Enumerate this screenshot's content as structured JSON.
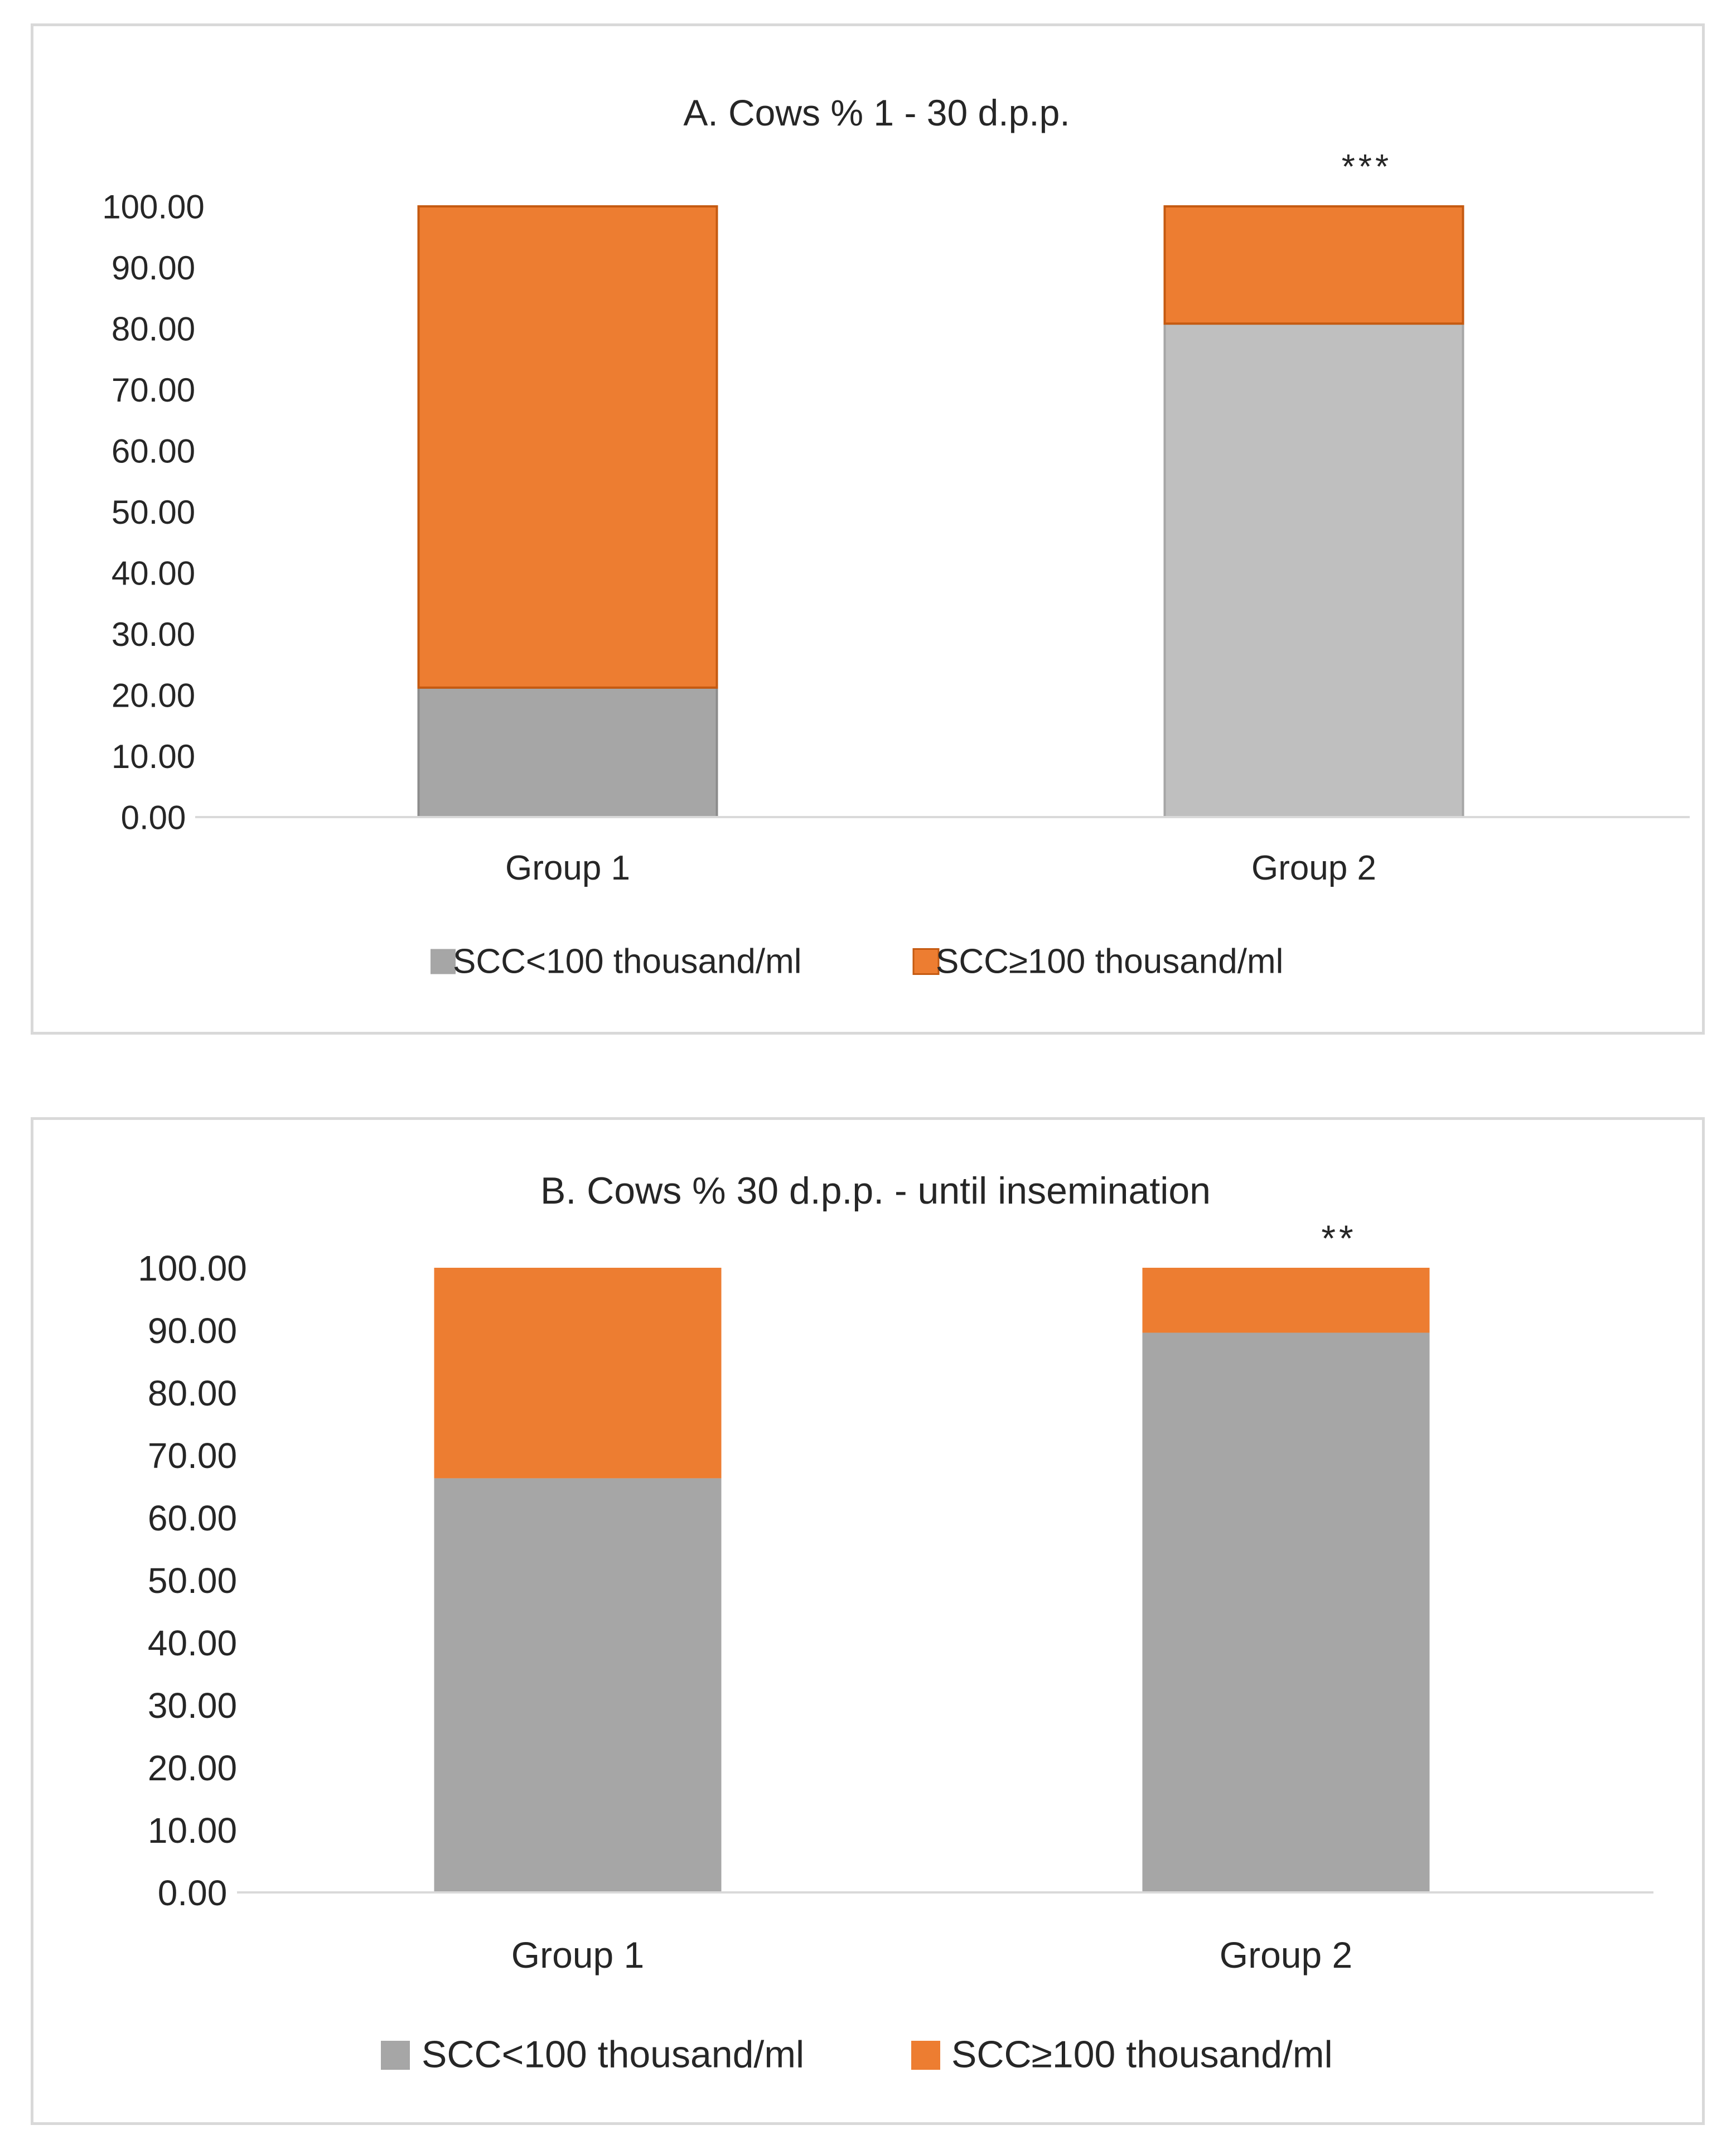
{
  "chart_data": [
    {
      "type": "stacked_bar",
      "title": "A. Cows %  1 - 30 d.p.p.",
      "categories": [
        "Group 1",
        "Group 2"
      ],
      "series": [
        {
          "name": "SCC<100 thousand/ml",
          "values": [
            21.2,
            80.8
          ],
          "color": "#a6a6a6"
        },
        {
          "name": "SCC≥100 thousand/ml",
          "values": [
            78.8,
            19.2
          ],
          "color": "#ed7d31"
        }
      ],
      "ylim": [
        0,
        100
      ],
      "yticks": [
        "0.00",
        "10.00",
        "20.00",
        "30.00",
        "40.00",
        "50.00",
        "60.00",
        "70.00",
        "80.00",
        "90.00",
        "100.00"
      ],
      "annotations": [
        "",
        "***"
      ],
      "legend": "bottom"
    },
    {
      "type": "stacked_bar",
      "title": "B.  Cows % 30 d.p.p. - until insemination",
      "categories": [
        "Group 1",
        "Group 2"
      ],
      "series": [
        {
          "name": "SCC<100 thousand/ml",
          "values": [
            66.3,
            89.6
          ],
          "color": "#a6a6a6"
        },
        {
          "name": "SCC≥100 thousand/ml",
          "values": [
            33.7,
            10.4
          ],
          "color": "#ed7d31"
        }
      ],
      "ylim": [
        0,
        100
      ],
      "yticks": [
        "0.00",
        "10.00",
        "20.00",
        "30.00",
        "40.00",
        "50.00",
        "60.00",
        "70.00",
        "80.00",
        "90.00",
        "100.00"
      ],
      "annotations": [
        "",
        "**"
      ],
      "legend": "bottom"
    }
  ]
}
